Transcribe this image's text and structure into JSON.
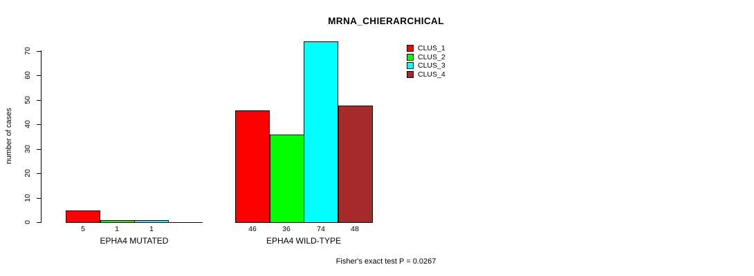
{
  "title": "MRNA_CHIERARCHICAL",
  "footer": "Fisher's exact test P = 0.0267",
  "chart_data": {
    "type": "bar",
    "title": "MRNA_CHIERARCHICAL",
    "xlabel": "",
    "ylabel": "number of cases",
    "ylim": [
      0,
      70
    ],
    "yticks": [
      0,
      10,
      20,
      30,
      40,
      50,
      60,
      70
    ],
    "grid": false,
    "legend_position": "top-right",
    "series": [
      "CLUS_1",
      "CLUS_2",
      "CLUS_3",
      "CLUS_4"
    ],
    "colors": [
      "#ff0000",
      "#00ff00",
      "#00ffff",
      "#a52a2a"
    ],
    "groups": [
      {
        "label": "EPHA4 MUTATED",
        "values": [
          5,
          1,
          1,
          0
        ],
        "value_labels": [
          "5",
          "1",
          "1",
          ""
        ]
      },
      {
        "label": "EPHA4 WILD-TYPE",
        "values": [
          46,
          36,
          74,
          48
        ],
        "value_labels": [
          "46",
          "36",
          "74",
          "48"
        ]
      }
    ],
    "annotation": "Fisher's exact test P = 0.0267"
  }
}
